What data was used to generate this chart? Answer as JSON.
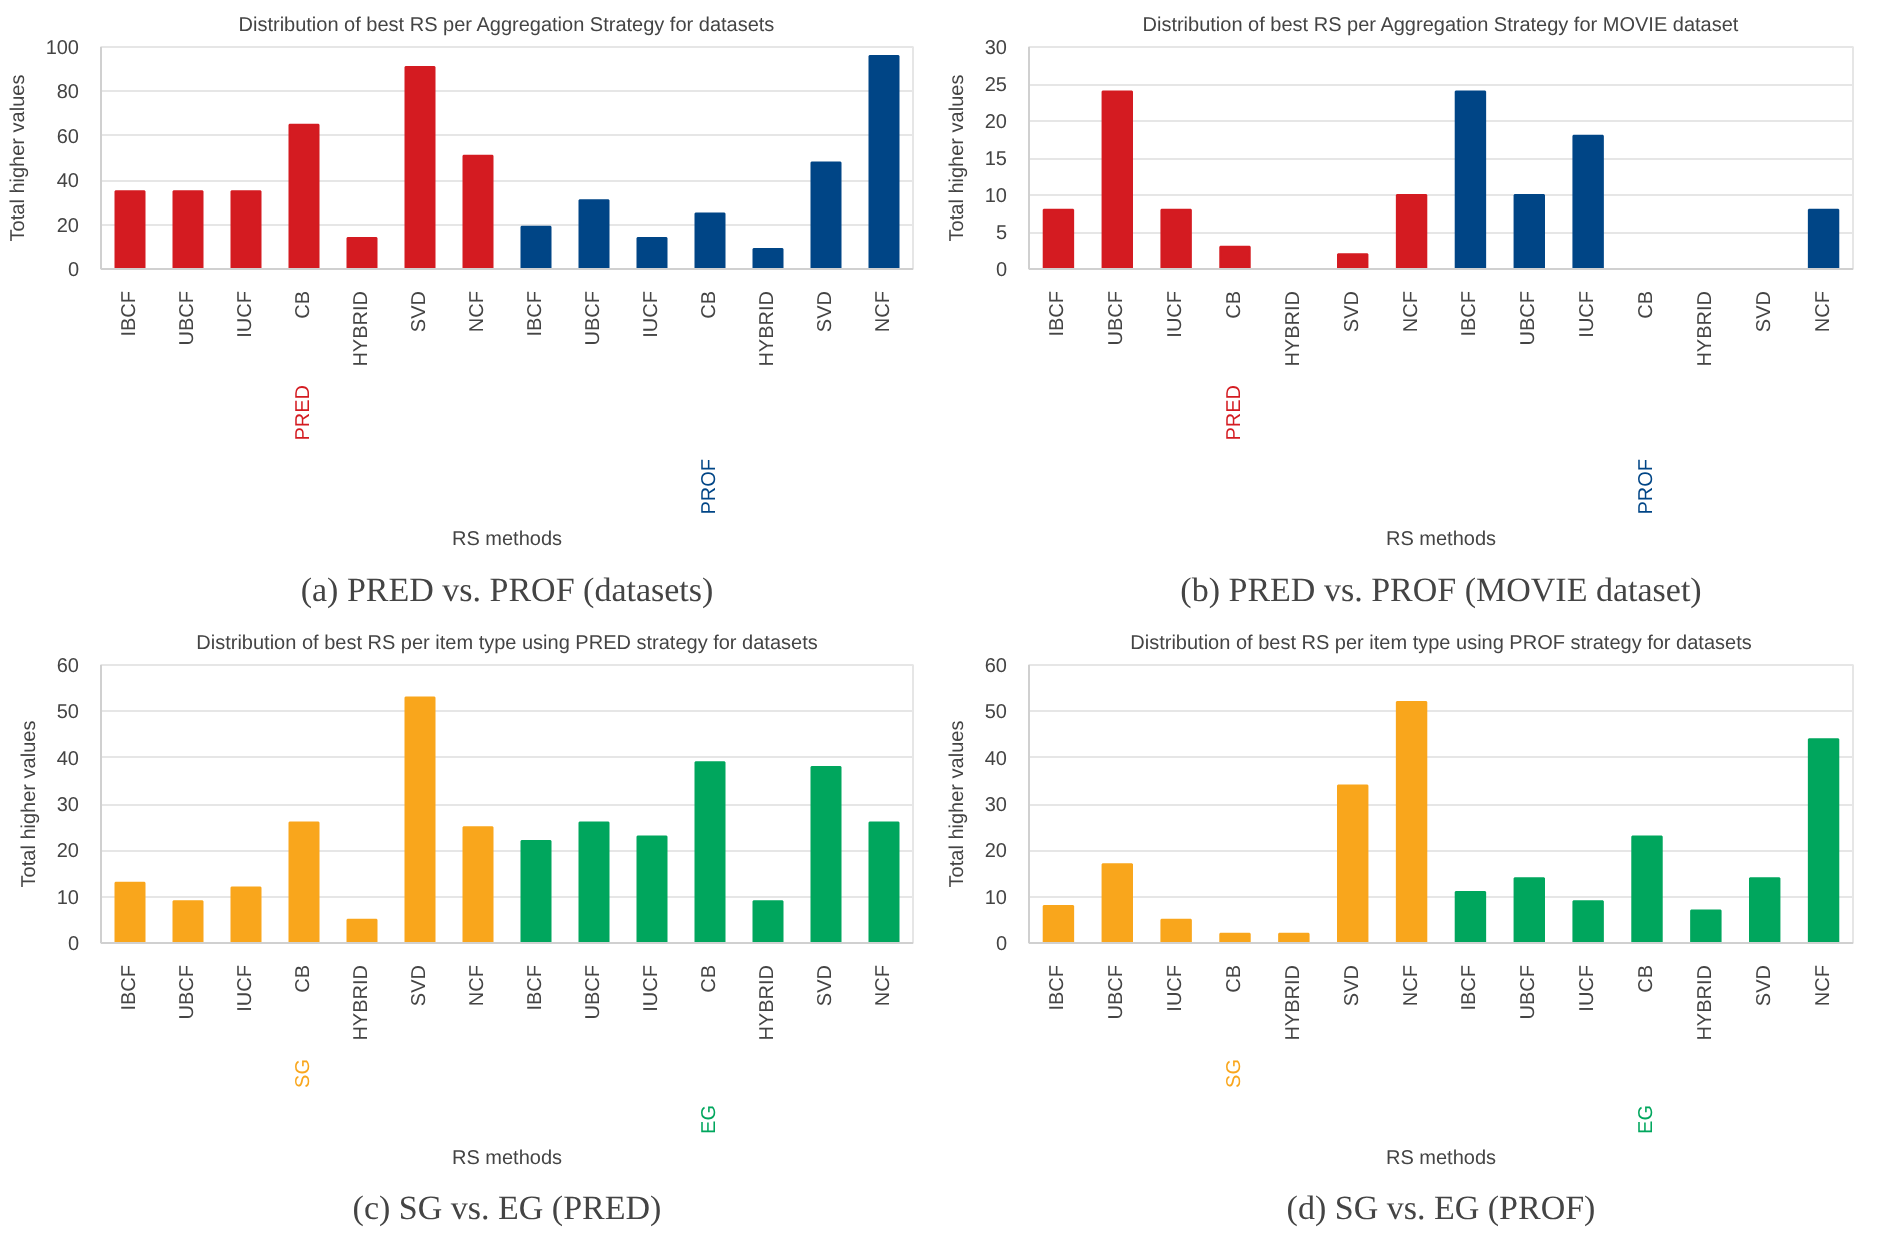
{
  "chart_data": [
    {
      "type": "bar",
      "title": "Distribution of best RS per Aggregation Strategy for datasets",
      "xlabel": "RS methods",
      "ylabel": "Total higher values",
      "annotations": [
        "(a) PRED vs. PROF (datasets)"
      ],
      "categories": [
        "IBCF",
        "UBCF",
        "IUCF",
        "CB",
        "HYBRID",
        "SVD",
        "NCF",
        "IBCF",
        "UBCF",
        "IUCF",
        "CB",
        "HYBRID",
        "SVD",
        "NCF"
      ],
      "series": [
        {
          "name": "PRED",
          "color": "#d41b21",
          "values": [
            35,
            35,
            35,
            65,
            14,
            91,
            51,
            null,
            null,
            null,
            null,
            null,
            null,
            null
          ]
        },
        {
          "name": "PROF",
          "color": "#004586",
          "values": [
            null,
            null,
            null,
            null,
            null,
            null,
            null,
            19,
            31,
            14,
            25,
            9,
            48,
            96
          ]
        }
      ],
      "ylim": [
        0,
        100
      ],
      "yticks": [
        0,
        20,
        40,
        60,
        80,
        100
      ],
      "grid": "y"
    },
    {
      "type": "bar",
      "title": "Distribution of best RS per Aggregation Strategy for MOVIE dataset",
      "xlabel": "RS methods",
      "ylabel": "Total higher values",
      "annotations": [
        "(b) PRED vs. PROF (MOVIE dataset)"
      ],
      "categories": [
        "IBCF",
        "UBCF",
        "IUCF",
        "CB",
        "HYBRID",
        "SVD",
        "NCF",
        "IBCF",
        "UBCF",
        "IUCF",
        "CB",
        "HYBRID",
        "SVD",
        "NCF"
      ],
      "series": [
        {
          "name": "PRED",
          "color": "#d41b21",
          "values": [
            8,
            24,
            8,
            3,
            0,
            2,
            10,
            null,
            null,
            null,
            null,
            null,
            null,
            null
          ]
        },
        {
          "name": "PROF",
          "color": "#004586",
          "values": [
            null,
            null,
            null,
            null,
            null,
            null,
            null,
            24,
            10,
            18,
            0,
            0,
            0,
            8
          ]
        }
      ],
      "ylim": [
        0,
        30
      ],
      "yticks": [
        0,
        5,
        10,
        15,
        20,
        25,
        30
      ],
      "grid": "y"
    },
    {
      "type": "bar",
      "title": "Distribution of best RS per item type using PRED strategy for datasets",
      "xlabel": "RS methods",
      "ylabel": "Total higher values",
      "annotations": [
        "(c) SG vs. EG (PRED)"
      ],
      "categories": [
        "IBCF",
        "UBCF",
        "IUCF",
        "CB",
        "HYBRID",
        "SVD",
        "NCF",
        "IBCF",
        "UBCF",
        "IUCF",
        "CB",
        "HYBRID",
        "SVD",
        "NCF"
      ],
      "series": [
        {
          "name": "SG",
          "color": "#f9a61c",
          "values": [
            13,
            9,
            12,
            26,
            5,
            53,
            25,
            null,
            null,
            null,
            null,
            null,
            null,
            null
          ]
        },
        {
          "name": "EG",
          "color": "#00a65d",
          "values": [
            null,
            null,
            null,
            null,
            null,
            null,
            null,
            22,
            26,
            23,
            39,
            9,
            38,
            26
          ]
        }
      ],
      "ylim": [
        0,
        60
      ],
      "yticks": [
        0,
        10,
        20,
        30,
        40,
        50,
        60
      ],
      "grid": "y"
    },
    {
      "type": "bar",
      "title": "Distribution of best RS per item type using PROF strategy for datasets",
      "xlabel": "RS methods",
      "ylabel": "Total higher values",
      "annotations": [
        "(d) SG vs. EG (PROF)"
      ],
      "categories": [
        "IBCF",
        "UBCF",
        "IUCF",
        "CB",
        "HYBRID",
        "SVD",
        "NCF",
        "IBCF",
        "UBCF",
        "IUCF",
        "CB",
        "HYBRID",
        "SVD",
        "NCF"
      ],
      "series": [
        {
          "name": "SG",
          "color": "#f9a61c",
          "values": [
            8,
            17,
            5,
            2,
            2,
            34,
            52,
            null,
            null,
            null,
            null,
            null,
            null,
            null
          ]
        },
        {
          "name": "EG",
          "color": "#00a65d",
          "values": [
            null,
            null,
            null,
            null,
            null,
            null,
            null,
            11,
            14,
            9,
            23,
            7,
            14,
            44
          ]
        }
      ],
      "ylim": [
        0,
        60
      ],
      "yticks": [
        0,
        10,
        20,
        30,
        40,
        50,
        60
      ],
      "grid": "y"
    }
  ]
}
